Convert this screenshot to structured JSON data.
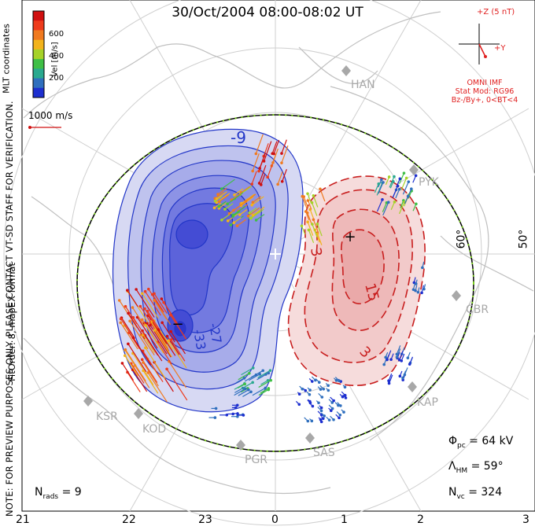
{
  "title": "30/Oct/2004 08:00-08:02 UT",
  "side_note": "NOTE: FOR PREVIEW PURPOSES ONLY. PLEASE CONTACT VT-SD STAFF FOR VERIFICATION.",
  "fit_info": "FitOrder: 8, mapEX format",
  "coords_label": "MLT coordinates",
  "colorbar": {
    "label": "Vel [m/s]",
    "ticks": [
      "600",
      "400",
      "200"
    ],
    "colors": [
      "#d01010",
      "#ee3b1c",
      "#f07a20",
      "#f2b31c",
      "#a6d228",
      "#3fbf46",
      "#2aa98f",
      "#2f6fbe",
      "#1d2fcf"
    ]
  },
  "ref_vector": {
    "label": "1000 m/s",
    "color": "#d01010"
  },
  "imf": {
    "scale_label": "+Z (5 nT)",
    "y_label": "+Y",
    "lines": [
      "OMNI IMF",
      "Stat Mod: RG96",
      "Bz-/By+, 0<BT<4"
    ],
    "color": "#e02020"
  },
  "stats": {
    "phi_pc": {
      "symbol": "Φ",
      "sub": "pc",
      "value": "= 64 kV"
    },
    "lambda_hm": {
      "symbol": "Λ",
      "sub": "HM",
      "value": "= 59°"
    },
    "n_vc": {
      "symbol": "N",
      "sub": "vc",
      "value": "= 324"
    },
    "n_rads": {
      "symbol": "N",
      "sub": "rads",
      "value": "= 9"
    }
  },
  "latitude_labels": [
    "60°",
    "50°"
  ],
  "mlt_axis": [
    "21",
    "22",
    "23",
    "0",
    "1",
    "2",
    "3"
  ],
  "stations": [
    "HAN",
    "PYK",
    "CBR",
    "KAP",
    "SAS",
    "PGR",
    "KOD",
    "KSR"
  ],
  "contours": {
    "negative_labels": [
      "-9",
      "-27",
      "-33"
    ],
    "positive_labels": [
      "3",
      "15",
      "3"
    ],
    "neg_color": "#2236c8",
    "pos_color": "#c81e1e"
  },
  "extrema": {
    "min_marker": "−",
    "max_marker": "+"
  }
}
